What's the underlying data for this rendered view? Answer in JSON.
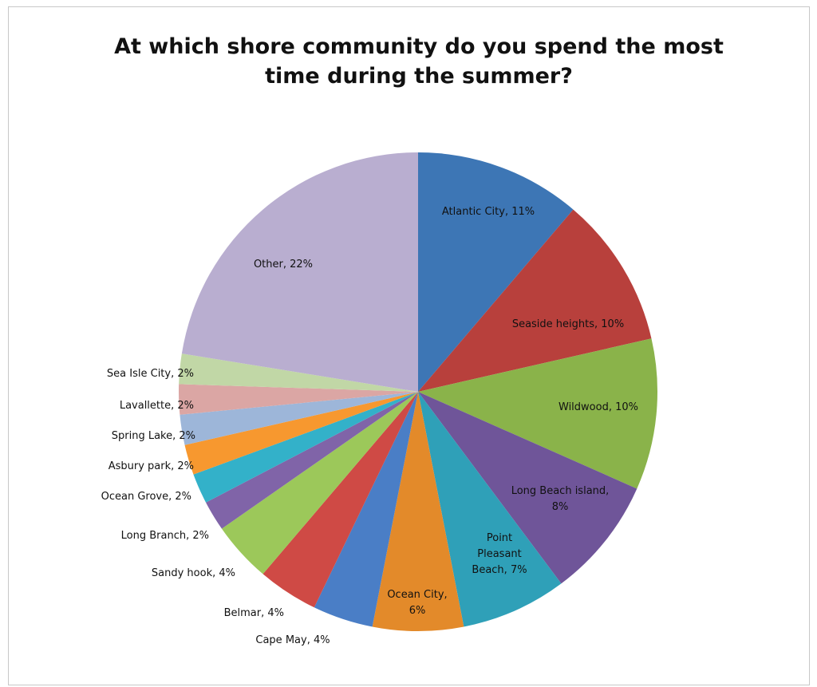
{
  "chart_data": {
    "type": "pie",
    "title": "At which shore community do you spend the most time during the summer?",
    "title_lines": [
      "At which shore community do you spend the most",
      "time during the summer?"
    ],
    "start_angle": "12 o'clock",
    "direction": "clockwise",
    "legend": "none",
    "slices": [
      {
        "label": "Atlantic City",
        "value": 11,
        "text": "Atlantic City, 11%",
        "color": "#3d76b5",
        "label_lines": [
          "Atlantic City, 11%"
        ],
        "label_position": "inside"
      },
      {
        "label": "Seaside heights",
        "value": 10,
        "text": "Seaside heights, 10%",
        "color": "#b8403c",
        "label_lines": [
          "Seaside heights, 10%"
        ],
        "label_position": "inside"
      },
      {
        "label": "Wildwood",
        "value": 10,
        "text": "Wildwood, 10%",
        "color": "#8ab34a",
        "label_lines": [
          "Wildwood, 10%"
        ],
        "label_position": "inside"
      },
      {
        "label": "Long Beach island",
        "value": 8,
        "text": "Long Beach island, 8%",
        "color": "#6f5599",
        "label_lines": [
          "Long Beach island,",
          "8%"
        ],
        "label_position": "inside"
      },
      {
        "label": "Point Pleasant Beach",
        "value": 7,
        "text": "Point Pleasant Beach, 7%",
        "color": "#2fa0b8",
        "label_lines": [
          "Point",
          "Pleasant",
          "Beach, 7%"
        ],
        "label_position": "inside"
      },
      {
        "label": "Ocean City",
        "value": 6,
        "text": "Ocean City, 6%",
        "color": "#e38a2a",
        "label_lines": [
          "Ocean City,",
          "6%"
        ],
        "label_position": "inside"
      },
      {
        "label": "Cape May",
        "value": 4,
        "text": "Cape May, 4%",
        "color": "#4a7ec6",
        "label_lines": [
          "Cape May, 4%"
        ],
        "label_position": "outside"
      },
      {
        "label": "Belmar",
        "value": 4,
        "text": "Belmar, 4%",
        "color": "#cf4a45",
        "label_lines": [
          "Belmar, 4%"
        ],
        "label_position": "outside"
      },
      {
        "label": "Sandy hook",
        "value": 4,
        "text": "Sandy hook, 4%",
        "color": "#9cc85a",
        "label_lines": [
          "Sandy hook, 4%"
        ],
        "label_position": "outside"
      },
      {
        "label": "Long Branch",
        "value": 2,
        "text": "Long Branch, 2%",
        "color": "#8064a8",
        "label_lines": [
          "Long Branch, 2%"
        ],
        "label_position": "outside"
      },
      {
        "label": "Ocean Grove",
        "value": 2,
        "text": "Ocean Grove, 2%",
        "color": "#33b1c9",
        "label_lines": [
          "Ocean Grove, 2%"
        ],
        "label_position": "outside"
      },
      {
        "label": "Asbury park",
        "value": 2,
        "text": "Asbury park, 2%",
        "color": "#f7982f",
        "label_lines": [
          "Asbury park, 2%"
        ],
        "label_position": "outside"
      },
      {
        "label": "Spring Lake",
        "value": 2,
        "text": "Spring Lake, 2%",
        "color": "#9db6d9",
        "label_lines": [
          "Spring Lake, 2%"
        ],
        "label_position": "outside"
      },
      {
        "label": "Lavallette",
        "value": 2,
        "text": "Lavallette, 2%",
        "color": "#dba6a4",
        "label_lines": [
          "Lavallette, 2%"
        ],
        "label_position": "outside"
      },
      {
        "label": "Sea Isle City",
        "value": 2,
        "text": "Sea Isle City, 2%",
        "color": "#c1d7a6",
        "label_lines": [
          "Sea Isle City, 2%"
        ],
        "label_position": "outside"
      },
      {
        "label": "Other",
        "value": 22,
        "text": "Other, 22%",
        "color": "#b9aed0",
        "label_lines": [
          "Other, 22%"
        ],
        "label_position": "inside"
      }
    ]
  }
}
